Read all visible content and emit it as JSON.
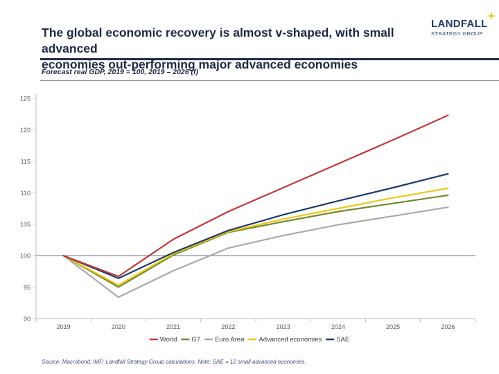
{
  "header": {
    "title_line1": "The global economic recovery is almost v-shaped, with small advanced",
    "title_line2": "economies out-performing major advanced economies",
    "logo_word": "LANDFALL",
    "logo_sub": "STRATEGY GROUP"
  },
  "subtitle": "Forecast real GDP, 2019 = 100, 2019 – 2026 (f)",
  "source": "Source: Macrobond;  IMF; Landfall Strategy Group calculations. Note: SAE = 12 small advanced economies.",
  "colors": {
    "world": "#c0393b",
    "g7": "#6f8c2a",
    "euro": "#a9a9a9",
    "advanced": "#f0c419",
    "sae": "#1f3a6b",
    "title": "#1f2a44",
    "logo_star": "#f0c419"
  },
  "chart_data": {
    "type": "line",
    "x": [
      "2019",
      "2020",
      "2021",
      "2022",
      "2023",
      "2024",
      "2025",
      "2026"
    ],
    "ylim": [
      90,
      125
    ],
    "yticks": [
      90,
      95,
      100,
      105,
      110,
      115,
      120,
      125
    ],
    "reference_line": 100,
    "grid": false,
    "legend_position": "bottom",
    "series": [
      {
        "key": "world",
        "name": "World",
        "values": [
          100,
          96.7,
          102.6,
          107.0,
          110.8,
          114.6,
          118.4,
          122.3
        ]
      },
      {
        "key": "g7",
        "name": "G7",
        "values": [
          100,
          95.0,
          100.1,
          103.7,
          105.4,
          107.0,
          108.3,
          109.6
        ]
      },
      {
        "key": "euro",
        "name": "Euro Area",
        "values": [
          100,
          93.4,
          97.6,
          101.2,
          103.2,
          104.9,
          106.3,
          107.7
        ]
      },
      {
        "key": "advanced",
        "name": "Advanced economies",
        "values": [
          100,
          95.3,
          100.3,
          103.8,
          105.8,
          107.5,
          109.2,
          110.7
        ]
      },
      {
        "key": "sae",
        "name": "SAE",
        "values": [
          100,
          96.4,
          100.5,
          104.0,
          106.5,
          108.7,
          110.8,
          113.0
        ]
      }
    ]
  }
}
